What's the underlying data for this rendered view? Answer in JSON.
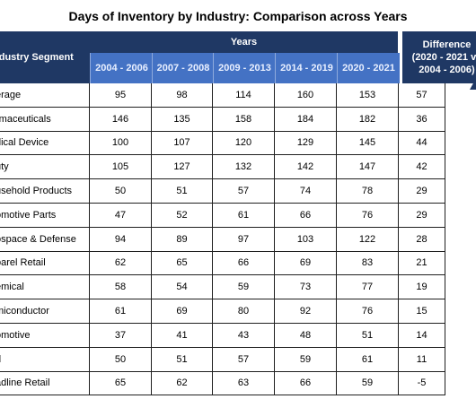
{
  "title": "Days of Inventory by Industry: Comparison across Years",
  "header": {
    "segment_label": "ndustry Segment",
    "years_label": "Years",
    "difference_label_1": "Difference",
    "difference_label_2": "(2020 - 2021 vs",
    "difference_label_3": "2004 - 2006)"
  },
  "chart_data": {
    "type": "table",
    "title": "Days of Inventory by Industry: Comparison across Years",
    "columns": [
      "2004 - 2006",
      "2007 - 2008",
      "2009 - 2013",
      "2014 - 2019",
      "2020 - 2021"
    ],
    "rows": [
      {
        "segment": "erage",
        "values": [
          95,
          98,
          114,
          160,
          153
        ],
        "difference": 57
      },
      {
        "segment": "rmaceuticals",
        "values": [
          146,
          135,
          158,
          184,
          182
        ],
        "difference": 36
      },
      {
        "segment": "dical Device",
        "values": [
          100,
          107,
          120,
          129,
          145
        ],
        "difference": 44
      },
      {
        "segment": "uty",
        "values": [
          105,
          127,
          132,
          142,
          147
        ],
        "difference": 42
      },
      {
        "segment": "usehold Products",
        "values": [
          50,
          51,
          57,
          74,
          78
        ],
        "difference": 29
      },
      {
        "segment": "omotive Parts",
        "values": [
          47,
          52,
          61,
          66,
          76
        ],
        "difference": 29
      },
      {
        "segment": "ospace & Defense",
        "values": [
          94,
          89,
          97,
          103,
          122
        ],
        "difference": 28
      },
      {
        "segment": "parel Retail",
        "values": [
          62,
          65,
          66,
          69,
          83
        ],
        "difference": 21
      },
      {
        "segment": "emical",
        "values": [
          58,
          54,
          59,
          73,
          77
        ],
        "difference": 19
      },
      {
        "segment": "miconductor",
        "values": [
          61,
          69,
          80,
          92,
          76
        ],
        "difference": 15
      },
      {
        "segment": "omotive",
        "values": [
          37,
          41,
          43,
          48,
          51
        ],
        "difference": 14
      },
      {
        "segment": "d",
        "values": [
          50,
          51,
          57,
          59,
          61
        ],
        "difference": 11
      },
      {
        "segment": "adline Retail",
        "values": [
          65,
          62,
          63,
          66,
          59
        ],
        "difference": -5
      }
    ]
  },
  "colors": {
    "header_dark": "#1f3864",
    "header_light": "#4472c4",
    "arrow": "#1f3864"
  }
}
